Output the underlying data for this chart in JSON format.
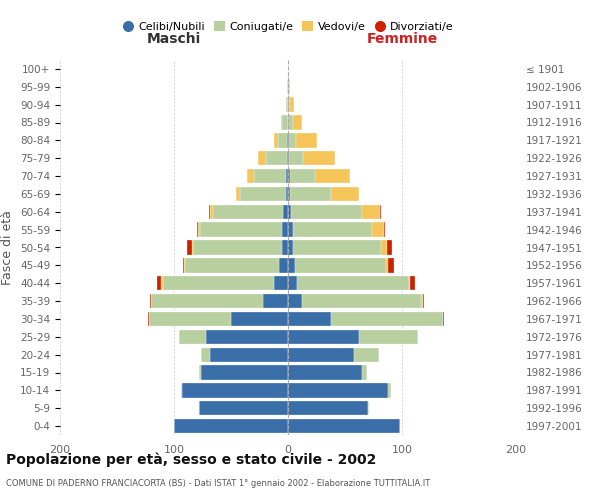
{
  "age_groups": [
    "0-4",
    "5-9",
    "10-14",
    "15-19",
    "20-24",
    "25-29",
    "30-34",
    "35-39",
    "40-44",
    "45-49",
    "50-54",
    "55-59",
    "60-64",
    "65-69",
    "70-74",
    "75-79",
    "80-84",
    "85-89",
    "90-94",
    "95-99",
    "100+"
  ],
  "birth_years": [
    "1997-2001",
    "1992-1996",
    "1987-1991",
    "1982-1986",
    "1977-1981",
    "1972-1976",
    "1967-1971",
    "1962-1966",
    "1957-1961",
    "1952-1956",
    "1947-1951",
    "1942-1946",
    "1937-1941",
    "1932-1936",
    "1927-1931",
    "1922-1926",
    "1917-1921",
    "1912-1916",
    "1907-1911",
    "1902-1906",
    "≤ 1901"
  ],
  "males_celibi": [
    100,
    78,
    93,
    76,
    68,
    72,
    50,
    22,
    12,
    8,
    5,
    5,
    4,
    2,
    2,
    1,
    1,
    0,
    0,
    0,
    0
  ],
  "males_coniugati": [
    0,
    0,
    1,
    2,
    8,
    24,
    72,
    98,
    98,
    82,
    78,
    72,
    62,
    40,
    28,
    18,
    8,
    5,
    2,
    1,
    0
  ],
  "males_vedovi": [
    0,
    0,
    0,
    0,
    0,
    0,
    0,
    0,
    1,
    1,
    1,
    2,
    2,
    4,
    6,
    7,
    3,
    1,
    0,
    0,
    0
  ],
  "males_divorziati": [
    0,
    0,
    0,
    0,
    0,
    0,
    1,
    1,
    4,
    1,
    5,
    1,
    1,
    0,
    0,
    0,
    0,
    0,
    0,
    0,
    0
  ],
  "females_nubili": [
    98,
    70,
    88,
    65,
    58,
    62,
    38,
    12,
    8,
    6,
    4,
    4,
    3,
    2,
    2,
    1,
    1,
    0,
    0,
    0,
    0
  ],
  "females_coniugate": [
    0,
    1,
    2,
    4,
    22,
    52,
    98,
    105,
    98,
    80,
    78,
    70,
    62,
    36,
    22,
    12,
    6,
    4,
    2,
    1,
    0
  ],
  "females_vedove": [
    0,
    0,
    0,
    0,
    0,
    0,
    0,
    1,
    1,
    2,
    5,
    10,
    16,
    24,
    30,
    28,
    18,
    8,
    3,
    1,
    0
  ],
  "females_divorziate": [
    0,
    0,
    0,
    0,
    0,
    0,
    1,
    1,
    4,
    5,
    4,
    1,
    1,
    0,
    0,
    0,
    0,
    0,
    0,
    0,
    0
  ],
  "color_celibi": "#3a6ea8",
  "color_coniugati": "#b8cfa0",
  "color_vedovi": "#f5c55a",
  "color_divorziati": "#cc2200",
  "xlim": 200,
  "title": "Popolazione per età, sesso e stato civile - 2002",
  "subtitle": "COMUNE DI PADERNO FRANCIACORTA (BS) - Dati ISTAT 1° gennaio 2002 - Elaborazione TUTTITALIA.IT",
  "label_maschi": "Maschi",
  "label_femmine": "Femmine",
  "ylabel_left": "Fasce di età",
  "legend_labels": [
    "Celibi/Nubili",
    "Coniugati/e",
    "Vedovi/e",
    "Divorziati/e"
  ]
}
